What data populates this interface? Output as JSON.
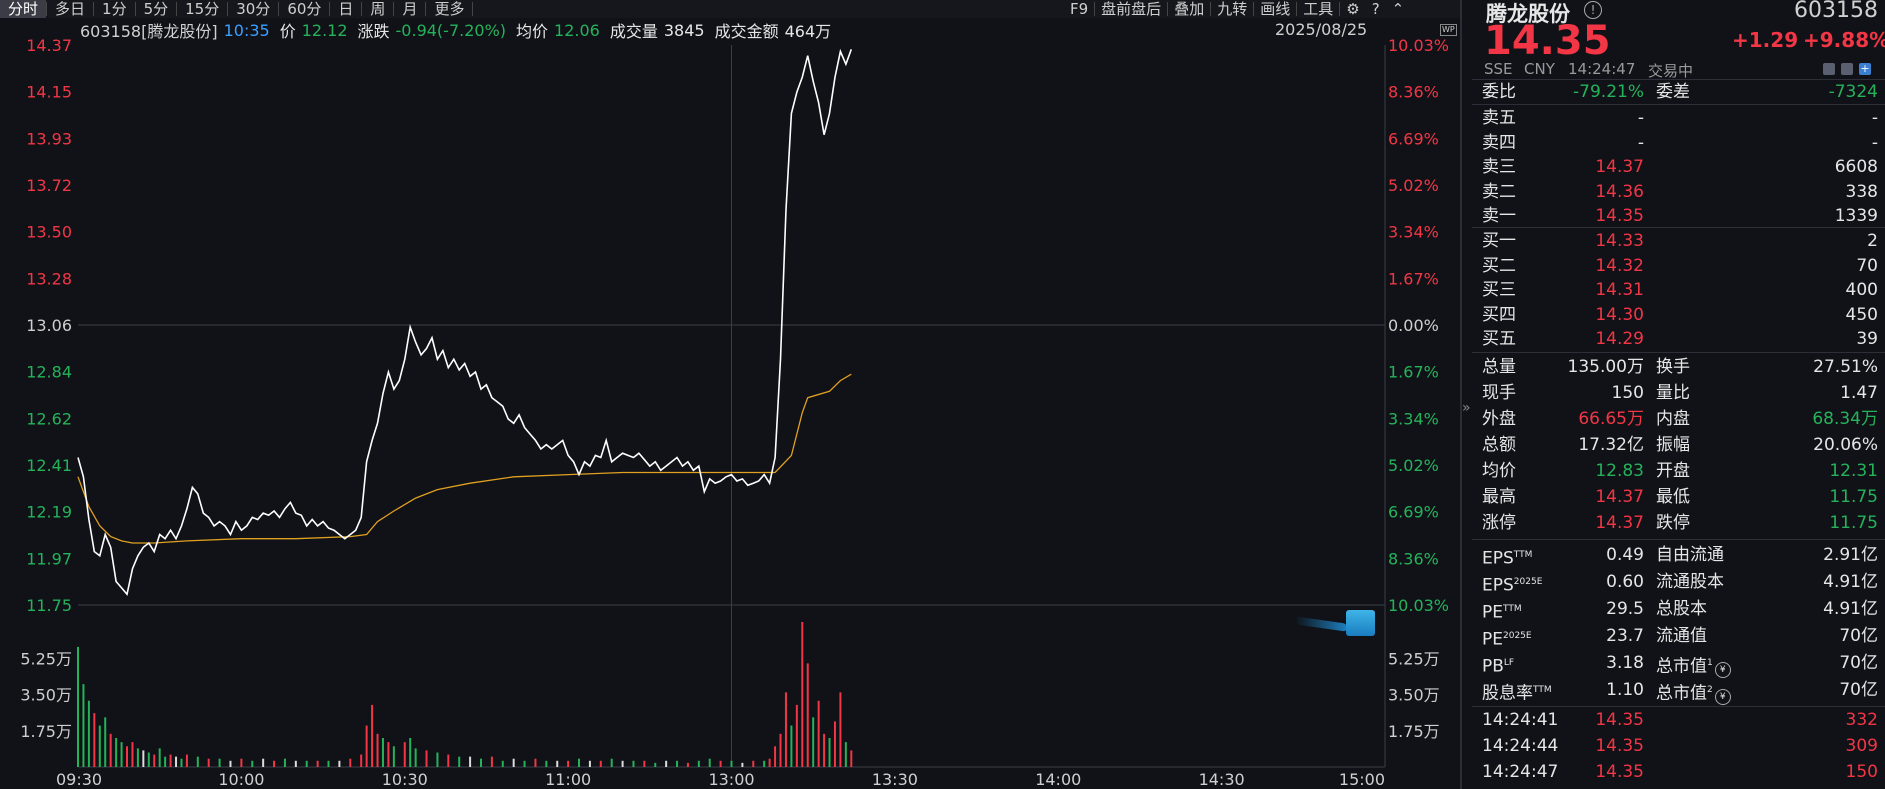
{
  "toolbar": {
    "periods": [
      "分时",
      "多日",
      "1分",
      "5分",
      "15分",
      "30分",
      "60分",
      "日",
      "周",
      "月",
      "更多"
    ],
    "active_period": "分时",
    "right_items": [
      "F9",
      "盘前盘后",
      "叠加",
      "九转",
      "画线",
      "工具"
    ],
    "icons": [
      "gear-icon",
      "help-icon",
      "expand-icon"
    ]
  },
  "info": {
    "code_name": "603158[腾龙股份]",
    "time": "10:35",
    "price_label": "价",
    "price": "12.12",
    "change_label": "涨跌",
    "change": "-0.94(-7.20%)",
    "avg_label": "均价",
    "avg": "12.06",
    "vol_label": "成交量",
    "vol": "3845",
    "amount_label": "成交金额",
    "amount": "464万",
    "date": "2025/08/25",
    "wp_badge": "WP"
  },
  "chart_data": {
    "type": "line",
    "prev_close": 13.06,
    "ylim": [
      11.75,
      14.37
    ],
    "left_ticks": [
      "14.37",
      "14.15",
      "13.93",
      "13.72",
      "13.50",
      "13.28",
      "13.06",
      "12.84",
      "12.62",
      "12.41",
      "12.19",
      "11.97",
      "11.75"
    ],
    "right_ticks": [
      "10.03%",
      "8.36%",
      "6.69%",
      "5.02%",
      "3.34%",
      "1.67%",
      "0.00%",
      "1.67%",
      "3.34%",
      "5.02%",
      "6.69%",
      "8.36%",
      "10.03%"
    ],
    "x_ticks": [
      "09:30",
      "10:00",
      "10:30",
      "11:00",
      "13:00",
      "13:30",
      "14:00",
      "14:30",
      "15:00"
    ],
    "volume_ticks": [
      "5.25万",
      "3.50万",
      "1.75万"
    ],
    "volume_max": 7.0,
    "price_series": [
      [
        0,
        12.44
      ],
      [
        1,
        12.35
      ],
      [
        2,
        12.15
      ],
      [
        3,
        12.0
      ],
      [
        4,
        11.98
      ],
      [
        5,
        12.08
      ],
      [
        6,
        12.02
      ],
      [
        7,
        11.86
      ],
      [
        8,
        11.83
      ],
      [
        9,
        11.8
      ],
      [
        10,
        11.92
      ],
      [
        11,
        11.98
      ],
      [
        12,
        12.02
      ],
      [
        13,
        12.04
      ],
      [
        14,
        12.0
      ],
      [
        15,
        12.08
      ],
      [
        16,
        12.06
      ],
      [
        17,
        12.1
      ],
      [
        18,
        12.06
      ],
      [
        19,
        12.12
      ],
      [
        20,
        12.2
      ],
      [
        21,
        12.3
      ],
      [
        22,
        12.27
      ],
      [
        23,
        12.18
      ],
      [
        24,
        12.16
      ],
      [
        25,
        12.12
      ],
      [
        26,
        12.14
      ],
      [
        27,
        12.12
      ],
      [
        28,
        12.08
      ],
      [
        29,
        12.14
      ],
      [
        30,
        12.1
      ],
      [
        31,
        12.12
      ],
      [
        32,
        12.16
      ],
      [
        33,
        12.15
      ],
      [
        34,
        12.18
      ],
      [
        35,
        12.17
      ],
      [
        36,
        12.19
      ],
      [
        37,
        12.16
      ],
      [
        38,
        12.2
      ],
      [
        39,
        12.23
      ],
      [
        40,
        12.18
      ],
      [
        41,
        12.17
      ],
      [
        42,
        12.12
      ],
      [
        43,
        12.15
      ],
      [
        44,
        12.12
      ],
      [
        45,
        12.14
      ],
      [
        46,
        12.11
      ],
      [
        47,
        12.1
      ],
      [
        48,
        12.08
      ],
      [
        49,
        12.06
      ],
      [
        50,
        12.08
      ],
      [
        51,
        12.1
      ],
      [
        52,
        12.16
      ],
      [
        53,
        12.42
      ],
      [
        54,
        12.52
      ],
      [
        55,
        12.6
      ],
      [
        56,
        12.74
      ],
      [
        57,
        12.84
      ],
      [
        58,
        12.76
      ],
      [
        59,
        12.8
      ],
      [
        60,
        12.9
      ],
      [
        61,
        13.05
      ],
      [
        62,
        12.98
      ],
      [
        63,
        12.92
      ],
      [
        64,
        12.95
      ],
      [
        65,
        13.0
      ],
      [
        66,
        12.9
      ],
      [
        67,
        12.94
      ],
      [
        68,
        12.86
      ],
      [
        69,
        12.9
      ],
      [
        70,
        12.85
      ],
      [
        71,
        12.88
      ],
      [
        72,
        12.82
      ],
      [
        73,
        12.84
      ],
      [
        74,
        12.76
      ],
      [
        75,
        12.78
      ],
      [
        76,
        12.72
      ],
      [
        77,
        12.7
      ],
      [
        78,
        12.68
      ],
      [
        79,
        12.62
      ],
      [
        80,
        12.6
      ],
      [
        81,
        12.64
      ],
      [
        82,
        12.58
      ],
      [
        83,
        12.55
      ],
      [
        84,
        12.52
      ],
      [
        85,
        12.48
      ],
      [
        86,
        12.5
      ],
      [
        87,
        12.48
      ],
      [
        88,
        12.5
      ],
      [
        89,
        12.52
      ],
      [
        90,
        12.45
      ],
      [
        91,
        12.42
      ],
      [
        92,
        12.36
      ],
      [
        93,
        12.42
      ],
      [
        94,
        12.4
      ],
      [
        95,
        12.45
      ],
      [
        96,
        12.44
      ],
      [
        97,
        12.52
      ],
      [
        98,
        12.42
      ],
      [
        99,
        12.44
      ],
      [
        100,
        12.46
      ],
      [
        101,
        12.45
      ],
      [
        102,
        12.44
      ],
      [
        103,
        12.46
      ],
      [
        104,
        12.43
      ],
      [
        105,
        12.4
      ],
      [
        106,
        12.42
      ],
      [
        107,
        12.38
      ],
      [
        108,
        12.4
      ],
      [
        109,
        12.42
      ],
      [
        110,
        12.44
      ],
      [
        111,
        12.4
      ],
      [
        112,
        12.42
      ],
      [
        113,
        12.38
      ],
      [
        114,
        12.4
      ],
      [
        115,
        12.28
      ],
      [
        116,
        12.34
      ],
      [
        117,
        12.32
      ],
      [
        118,
        12.33
      ],
      [
        119,
        12.35
      ],
      [
        120,
        12.36
      ],
      [
        121,
        12.33
      ],
      [
        122,
        12.34
      ],
      [
        123,
        12.31
      ],
      [
        124,
        12.32
      ],
      [
        125,
        12.33
      ],
      [
        126,
        12.36
      ],
      [
        127,
        12.32
      ],
      [
        128,
        12.44
      ],
      [
        129,
        12.9
      ],
      [
        130,
        13.6
      ],
      [
        131,
        14.05
      ],
      [
        132,
        14.15
      ],
      [
        133,
        14.22
      ],
      [
        134,
        14.32
      ],
      [
        135,
        14.2
      ],
      [
        136,
        14.1
      ],
      [
        137,
        13.95
      ],
      [
        138,
        14.05
      ],
      [
        139,
        14.22
      ],
      [
        140,
        14.34
      ],
      [
        141,
        14.28
      ],
      [
        142,
        14.35
      ]
    ],
    "avg_series": [
      [
        0,
        12.35
      ],
      [
        2,
        12.21
      ],
      [
        4,
        12.12
      ],
      [
        6,
        12.07
      ],
      [
        8,
        12.05
      ],
      [
        10,
        12.04
      ],
      [
        14,
        12.04
      ],
      [
        20,
        12.05
      ],
      [
        30,
        12.06
      ],
      [
        40,
        12.06
      ],
      [
        50,
        12.07
      ],
      [
        53,
        12.08
      ],
      [
        55,
        12.14
      ],
      [
        58,
        12.19
      ],
      [
        62,
        12.25
      ],
      [
        66,
        12.29
      ],
      [
        72,
        12.32
      ],
      [
        80,
        12.35
      ],
      [
        90,
        12.36
      ],
      [
        100,
        12.37
      ],
      [
        110,
        12.37
      ],
      [
        120,
        12.37
      ],
      [
        128,
        12.37
      ],
      [
        131,
        12.45
      ],
      [
        133,
        12.65
      ],
      [
        134,
        12.72
      ],
      [
        138,
        12.75
      ],
      [
        140,
        12.8
      ],
      [
        142,
        12.83
      ]
    ],
    "volume": [
      [
        0,
        5.8,
        "g"
      ],
      [
        1,
        4.0,
        "g"
      ],
      [
        2,
        3.2,
        "g"
      ],
      [
        3,
        2.6,
        "r"
      ],
      [
        4,
        2.0,
        "g"
      ],
      [
        5,
        2.4,
        "g"
      ],
      [
        6,
        1.6,
        "r"
      ],
      [
        7,
        1.4,
        "g"
      ],
      [
        8,
        1.2,
        "g"
      ],
      [
        9,
        1.0,
        "r"
      ],
      [
        10,
        1.2,
        "r"
      ],
      [
        11,
        0.9,
        "g"
      ],
      [
        12,
        0.8,
        "w"
      ],
      [
        13,
        0.7,
        "g"
      ],
      [
        14,
        0.6,
        "r"
      ],
      [
        15,
        0.9,
        "g"
      ],
      [
        16,
        0.5,
        "g"
      ],
      [
        17,
        0.6,
        "r"
      ],
      [
        18,
        0.5,
        "w"
      ],
      [
        19,
        0.4,
        "g"
      ],
      [
        20,
        0.6,
        "r"
      ],
      [
        22,
        0.5,
        "g"
      ],
      [
        24,
        0.4,
        "r"
      ],
      [
        26,
        0.4,
        "g"
      ],
      [
        28,
        0.3,
        "w"
      ],
      [
        30,
        0.4,
        "r"
      ],
      [
        32,
        0.3,
        "g"
      ],
      [
        34,
        0.4,
        "w"
      ],
      [
        36,
        0.3,
        "r"
      ],
      [
        38,
        0.4,
        "g"
      ],
      [
        40,
        0.3,
        "w"
      ],
      [
        42,
        0.3,
        "g"
      ],
      [
        44,
        0.3,
        "r"
      ],
      [
        46,
        0.3,
        "g"
      ],
      [
        48,
        0.3,
        "w"
      ],
      [
        50,
        0.4,
        "r"
      ],
      [
        52,
        0.6,
        "r"
      ],
      [
        53,
        2.0,
        "r"
      ],
      [
        54,
        3.0,
        "r"
      ],
      [
        55,
        1.6,
        "r"
      ],
      [
        56,
        1.4,
        "g"
      ],
      [
        57,
        1.2,
        "r"
      ],
      [
        58,
        1.0,
        "g"
      ],
      [
        60,
        1.2,
        "r"
      ],
      [
        61,
        1.4,
        "g"
      ],
      [
        62,
        0.9,
        "g"
      ],
      [
        64,
        0.8,
        "r"
      ],
      [
        66,
        0.7,
        "g"
      ],
      [
        68,
        0.6,
        "r"
      ],
      [
        70,
        0.5,
        "g"
      ],
      [
        72,
        0.5,
        "w"
      ],
      [
        74,
        0.4,
        "g"
      ],
      [
        76,
        0.5,
        "r"
      ],
      [
        78,
        0.3,
        "g"
      ],
      [
        80,
        0.4,
        "w"
      ],
      [
        82,
        0.3,
        "g"
      ],
      [
        84,
        0.4,
        "r"
      ],
      [
        86,
        0.3,
        "g"
      ],
      [
        88,
        0.3,
        "w"
      ],
      [
        90,
        0.3,
        "r"
      ],
      [
        92,
        0.4,
        "g"
      ],
      [
        94,
        0.3,
        "w"
      ],
      [
        96,
        0.3,
        "r"
      ],
      [
        98,
        0.4,
        "g"
      ],
      [
        100,
        0.3,
        "w"
      ],
      [
        102,
        0.3,
        "g"
      ],
      [
        104,
        0.3,
        "r"
      ],
      [
        106,
        0.2,
        "g"
      ],
      [
        108,
        0.3,
        "w"
      ],
      [
        110,
        0.3,
        "g"
      ],
      [
        112,
        0.2,
        "r"
      ],
      [
        114,
        0.3,
        "g"
      ],
      [
        116,
        0.4,
        "g"
      ],
      [
        118,
        0.3,
        "r"
      ],
      [
        120,
        0.3,
        "g"
      ],
      [
        122,
        0.2,
        "w"
      ],
      [
        124,
        0.3,
        "r"
      ],
      [
        126,
        0.3,
        "g"
      ],
      [
        127,
        0.4,
        "r"
      ],
      [
        128,
        1.0,
        "r"
      ],
      [
        129,
        1.6,
        "r"
      ],
      [
        130,
        3.6,
        "r"
      ],
      [
        131,
        2.0,
        "g"
      ],
      [
        132,
        3.0,
        "r"
      ],
      [
        133,
        7.0,
        "r"
      ],
      [
        134,
        5.0,
        "r"
      ],
      [
        135,
        2.4,
        "g"
      ],
      [
        136,
        3.2,
        "r"
      ],
      [
        137,
        1.6,
        "r"
      ],
      [
        138,
        1.4,
        "g"
      ],
      [
        139,
        2.2,
        "r"
      ],
      [
        140,
        3.6,
        "r"
      ],
      [
        141,
        1.2,
        "g"
      ],
      [
        142,
        0.8,
        "r"
      ]
    ]
  },
  "panel": {
    "name": "腾龙股份",
    "code": "603158",
    "price": "14.35",
    "change": "+1.29",
    "pct": "+9.88%",
    "exchange": "SSE",
    "currency": "CNY",
    "time": "14:24:47",
    "status": "交易中",
    "weibi_label": "委比",
    "weibi": "-79.21%",
    "weicha_label": "委差",
    "weicha": "-7324",
    "asks": [
      {
        "label": "卖五",
        "price": "-",
        "vol": "-"
      },
      {
        "label": "卖四",
        "price": "-",
        "vol": "-"
      },
      {
        "label": "卖三",
        "price": "14.37",
        "vol": "6608"
      },
      {
        "label": "卖二",
        "price": "14.36",
        "vol": "338"
      },
      {
        "label": "卖一",
        "price": "14.35",
        "vol": "1339"
      }
    ],
    "bids": [
      {
        "label": "买一",
        "price": "14.33",
        "vol": "2"
      },
      {
        "label": "买二",
        "price": "14.32",
        "vol": "70"
      },
      {
        "label": "买三",
        "price": "14.31",
        "vol": "400"
      },
      {
        "label": "买四",
        "price": "14.30",
        "vol": "450"
      },
      {
        "label": "买五",
        "price": "14.29",
        "vol": "39"
      }
    ],
    "stats": [
      {
        "l1": "总量",
        "v1": "135.00万",
        "c1": "white",
        "l2": "换手",
        "v2": "27.51%",
        "c2": "white"
      },
      {
        "l1": "现手",
        "v1": "150",
        "c1": "white",
        "l2": "量比",
        "v2": "1.47",
        "c2": "white"
      },
      {
        "l1": "外盘",
        "v1": "66.65万",
        "c1": "red",
        "l2": "内盘",
        "v2": "68.34万",
        "c2": "green"
      },
      {
        "l1": "总额",
        "v1": "17.32亿",
        "c1": "white",
        "l2": "振幅",
        "v2": "20.06%",
        "c2": "white"
      },
      {
        "l1": "均价",
        "v1": "12.83",
        "c1": "green",
        "l2": "开盘",
        "v2": "12.31",
        "c2": "green"
      },
      {
        "l1": "最高",
        "v1": "14.37",
        "c1": "red",
        "l2": "最低",
        "v2": "11.75",
        "c2": "green"
      },
      {
        "l1": "涨停",
        "v1": "14.37",
        "c1": "red",
        "l2": "跌停",
        "v2": "11.75",
        "c2": "green"
      }
    ],
    "fund": [
      {
        "l1": "EPS",
        "s1": "TTM",
        "v1": "0.49",
        "l2": "自由流通",
        "v2": "2.91亿"
      },
      {
        "l1": "EPS",
        "s1": "2025E",
        "v1": "0.60",
        "l2": "流通股本",
        "v2": "4.91亿"
      },
      {
        "l1": "PE",
        "s1": "TTM",
        "v1": "29.5",
        "l2": "总股本",
        "v2": "4.91亿"
      },
      {
        "l1": "PE",
        "s1": "2025E",
        "v1": "23.7",
        "l2": "流通值",
        "v2": "70亿"
      },
      {
        "l1": "PB",
        "s1": "LF",
        "v1": "3.18",
        "l2": "总市值",
        "s2": "1",
        "v2": "70亿"
      },
      {
        "l1": "股息率",
        "s1": "TTM",
        "v1": "1.10",
        "l2": "总市值",
        "s2": "2",
        "v2": "70亿"
      }
    ],
    "ticks": [
      {
        "time": "14:24:41",
        "price": "14.35",
        "vol": "332"
      },
      {
        "time": "14:24:44",
        "price": "14.35",
        "vol": "309"
      },
      {
        "time": "14:24:47",
        "price": "14.35",
        "vol": "150"
      }
    ]
  }
}
